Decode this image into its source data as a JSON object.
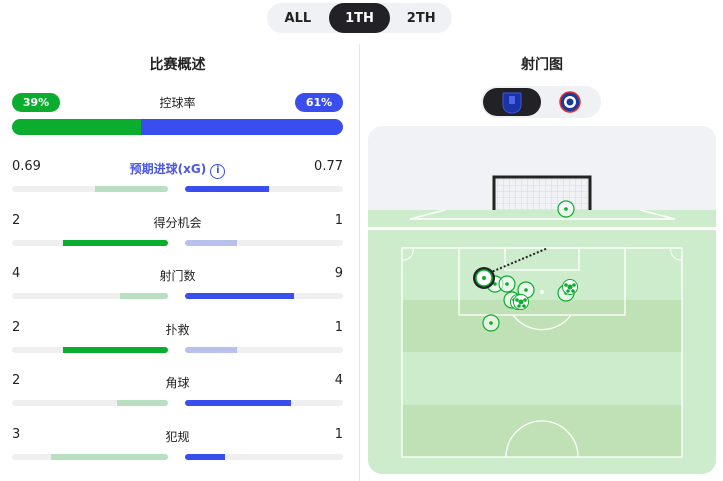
{
  "tabs": [
    {
      "label": "ALL",
      "active": false
    },
    {
      "label": "1TH",
      "active": true
    },
    {
      "label": "2TH",
      "active": false
    }
  ],
  "overview": {
    "title": "比赛概述",
    "possession": {
      "label": "控球率",
      "home": "39%",
      "away": "61%",
      "home_pct": 39,
      "away_pct": 61
    },
    "stats": [
      {
        "label": "预期进球(xG)",
        "home": "0.69",
        "away": "0.77",
        "home_frac": 0.47,
        "away_frac": 0.53,
        "home_leads": false,
        "info_icon": "info-icon"
      },
      {
        "label": "得分机会",
        "home": "2",
        "away": "1",
        "home_frac": 0.67,
        "away_frac": 0.33,
        "home_leads": true
      },
      {
        "label": "射门数",
        "home": "4",
        "away": "9",
        "home_frac": 0.31,
        "away_frac": 0.69,
        "home_leads": false
      },
      {
        "label": "扑救",
        "home": "2",
        "away": "1",
        "home_frac": 0.67,
        "away_frac": 0.33,
        "home_leads": true
      },
      {
        "label": "角球",
        "home": "2",
        "away": "4",
        "home_frac": 0.33,
        "away_frac": 0.67,
        "home_leads": false
      },
      {
        "label": "犯规",
        "home": "3",
        "away": "1",
        "home_frac": 0.75,
        "away_frac": 0.25,
        "home_leads": false
      }
    ]
  },
  "shotmap": {
    "title": "射门图",
    "teams": [
      {
        "name": "Everton",
        "selected": true
      },
      {
        "name": "Chelsea",
        "selected": false
      }
    ]
  },
  "colors": {
    "home": "#0bad2e",
    "home_light": "#b8e0c0",
    "away": "#3a4ef0",
    "away_light": "#b8c0ec",
    "pitch": "#cdeccb",
    "pitch_dark": "#c0e1b6"
  }
}
